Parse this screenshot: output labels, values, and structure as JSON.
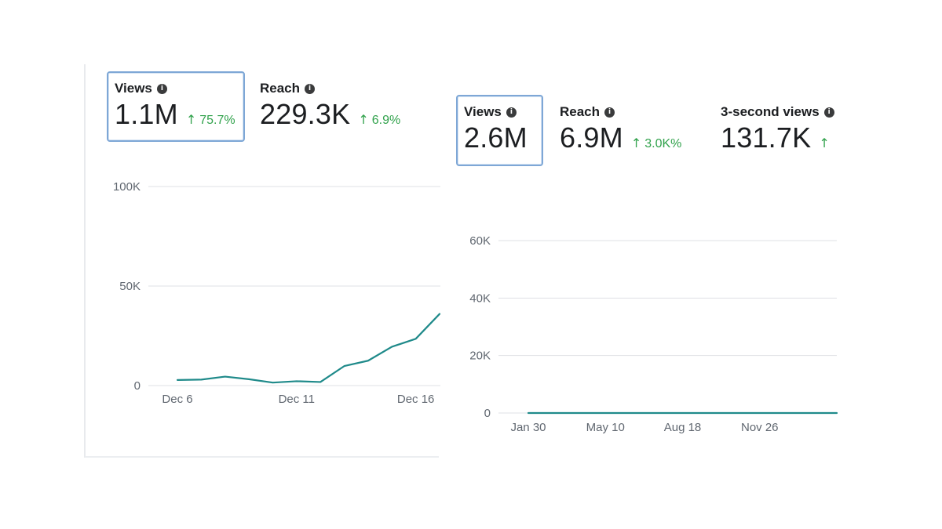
{
  "panel_a": {
    "metrics": [
      {
        "label": "Views",
        "value": "1.1M",
        "change": "75.7%",
        "selected": true
      },
      {
        "label": "Reach",
        "value": "229.3K",
        "change": "6.9%",
        "selected": false
      }
    ],
    "chart_data": {
      "type": "line",
      "title": "",
      "xlabel": "",
      "ylabel": "",
      "y_ticks": [
        "100K",
        "50K",
        "0"
      ],
      "x_ticks": [
        "Dec 6",
        "Dec 11",
        "Dec 16"
      ],
      "ylim": [
        0,
        100000
      ],
      "x": [
        "Dec 6",
        "Dec 7",
        "Dec 8",
        "Dec 9",
        "Dec 10",
        "Dec 11",
        "Dec 12",
        "Dec 13",
        "Dec 14",
        "Dec 15",
        "Dec 16",
        "Dec 17"
      ],
      "series": [
        {
          "values": [
            2800,
            3000,
            4500,
            3200,
            1500,
            2200,
            1800,
            9800,
            12500,
            19500,
            23500,
            36000
          ]
        }
      ],
      "grid": true,
      "line_color": "#1f8a8a"
    }
  },
  "panel_b": {
    "metrics": [
      {
        "label": "Views",
        "value": "2.6M",
        "change": "",
        "selected": true
      },
      {
        "label": "Reach",
        "value": "6.9M",
        "change": "3.0K%",
        "selected": false
      },
      {
        "label": "3-second views",
        "value": "131.7K",
        "change": "",
        "selected": false
      }
    ],
    "chart_data": {
      "type": "line",
      "title": "",
      "xlabel": "",
      "ylabel": "",
      "y_ticks": [
        "60K",
        "40K",
        "20K",
        "0"
      ],
      "x_ticks": [
        "Jan 30",
        "May 10",
        "Aug 18",
        "Nov 26"
      ],
      "ylim": [
        0,
        60000
      ],
      "x": [
        "Jan 30",
        "May 10",
        "Aug 18",
        "Nov 26",
        "end"
      ],
      "series": [
        {
          "values": [
            0,
            0,
            0,
            0,
            0
          ]
        }
      ],
      "grid": true,
      "line_color": "#1f8a8a"
    }
  },
  "icons": {
    "info": "i",
    "up_arrow": "↑"
  }
}
